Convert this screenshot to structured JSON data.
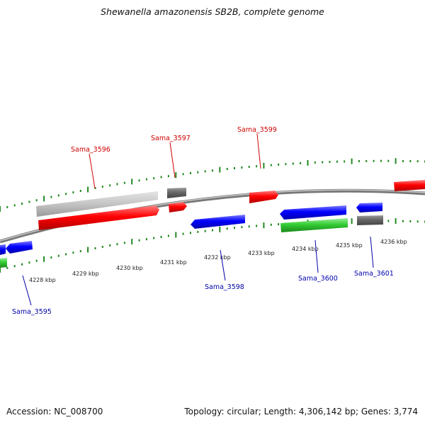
{
  "title": "Shewanella amazonensis SB2B, complete genome",
  "footer": {
    "accession": "Accession: NC_008700",
    "topology": "Topology: circular; Length: 4,306,142 bp; Genes: 3,774"
  },
  "colors": {
    "forward_gene": "#ff0000",
    "reverse_gene": "#0000ff",
    "green_gene": "#33cc33",
    "light_gray_gene": "#c8c8c8",
    "dark_gray_gene": "#666666",
    "tick": "#228822",
    "backbone": "#888888",
    "label_forward": "#cc0000",
    "label_reverse": "#0000aa"
  },
  "scale_labels": [
    "4228 kbp",
    "4229 kbp",
    "4230 kbp",
    "4231 kbp",
    "4232 kbp",
    "4233 kbp",
    "4234 kbp",
    "4235 kbp",
    "4236 kbp"
  ],
  "gene_labels": {
    "Sama_3595": "Sama_3595",
    "Sama_3596": "Sama_3596",
    "Sama_3597": "Sama_3597",
    "Sama_3598": "Sama_3598",
    "Sama_3599": "Sama_3599",
    "Sama_3600": "Sama_3600",
    "Sama_3601": "Sama_3601"
  }
}
